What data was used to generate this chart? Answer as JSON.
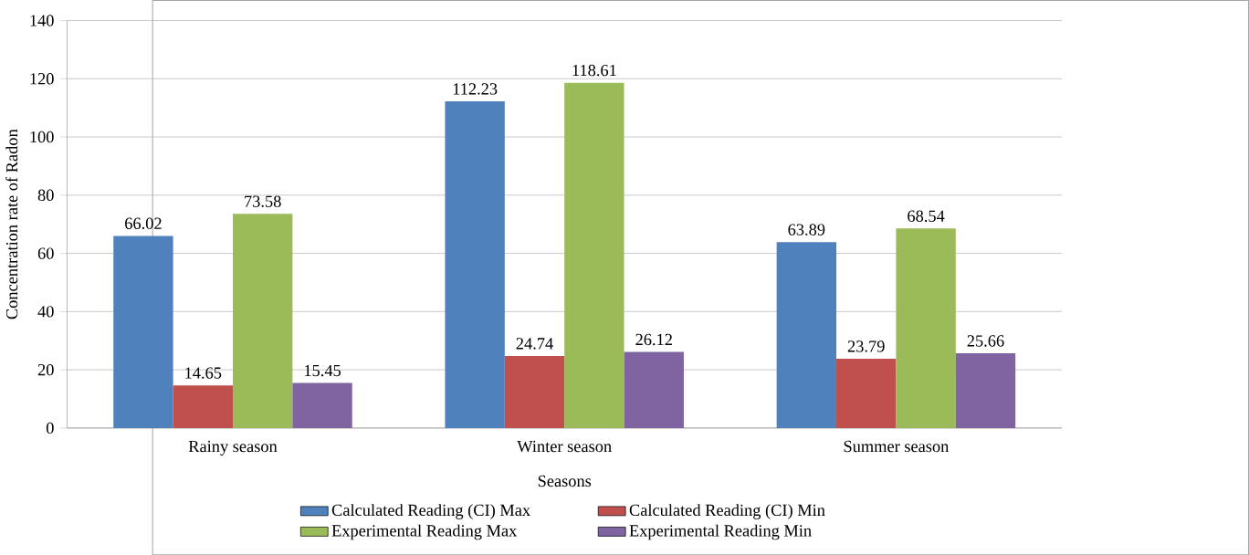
{
  "chart_data": {
    "type": "bar",
    "xlabel": "Seasons",
    "ylabel": "Concentration rate of Radon",
    "categories": [
      "Rainy season",
      "Winter season",
      "Summer season"
    ],
    "series": [
      {
        "name": "Calculated Reading (CI) Max",
        "color": "#4f81bd",
        "values": [
          66.02,
          112.23,
          63.89
        ]
      },
      {
        "name": "Calculated Reading (CI) Min",
        "color": "#c0504d",
        "values": [
          14.65,
          24.74,
          23.79
        ]
      },
      {
        "name": "Experimental Reading Max",
        "color": "#9bbb59",
        "values": [
          73.58,
          118.61,
          68.54
        ]
      },
      {
        "name": "Experimental Reading Min",
        "color": "#8064a2",
        "values": [
          15.45,
          26.12,
          25.66
        ]
      }
    ],
    "ylim": [
      0,
      140
    ],
    "yticks": [
      0,
      20,
      40,
      60,
      80,
      100,
      120,
      140
    ],
    "grid": "y",
    "legend": "bottom",
    "data_labels": true
  }
}
